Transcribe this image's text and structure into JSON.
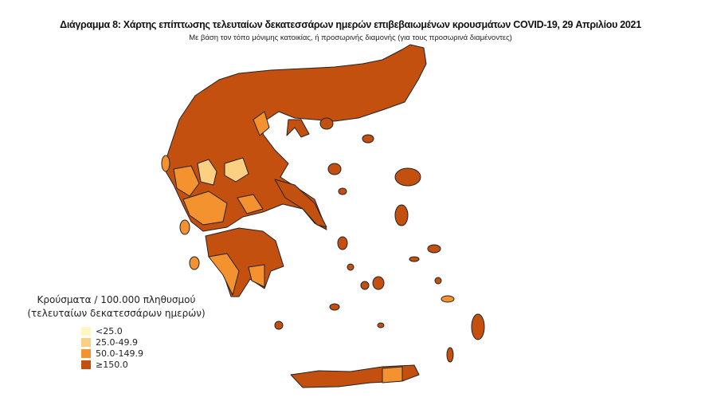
{
  "title": "Διάγραμμα 8: Χάρτης επίπτωσης τελευταίων δεκατεσσάρων ημερών επιβεβαιωμένων κρουσμάτων COVID-19, 29 Απριλίου 2021",
  "subtitle": "Με βάση τον τόπο μόνιμης κατοικίας, ή προσωρινής διαμονής (για τους προσωρινά διαμένοντες)",
  "legend": {
    "title_line1": "Κρούσματα / 100.000 πληθυσμού",
    "title_line2": "(τελευταίων δεκατεσσάρων ημερών)",
    "items": [
      {
        "label": "<25.0",
        "color": "#fff6c2"
      },
      {
        "label": "25.0-49.9",
        "color": "#fbd082"
      },
      {
        "label": "50.0-149.9",
        "color": "#f4922f"
      },
      {
        "label": "≥150.0",
        "color": "#c45010"
      }
    ]
  },
  "map": {
    "border_color": "#222222",
    "dominant_class": "≥150.0"
  }
}
